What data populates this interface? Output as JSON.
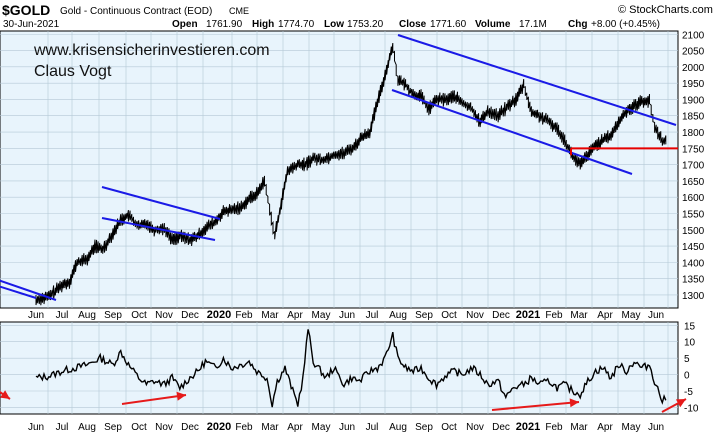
{
  "header": {
    "ticker": "$GOLD",
    "name": "Gold - Continuous Contract (EOD)",
    "exchange": "CME",
    "date": "30-Jun-2021",
    "open_label": "Open",
    "open": "1761.90",
    "high_label": "High",
    "high": "1774.70",
    "low_label": "Low",
    "low": "1753.20",
    "close_label": "Close",
    "close": "1771.60",
    "volume_label": "Volume",
    "volume": "17.1M",
    "chg_label": "Chg",
    "chg": "+8.00 (+0.45%)",
    "logo": "© StockCharts.com"
  },
  "watermark": {
    "line1": "www.krisensicherinvestieren.com",
    "line2": "Claus Vogt"
  },
  "colors": {
    "panel_bg": "#E8F4FC",
    "grid": "#B4C8D6",
    "price": "#000000",
    "channel": "#1A1AE6",
    "support": "#E60000",
    "arrow": "#E61A1A"
  },
  "chart_data": [
    {
      "type": "line",
      "title": "",
      "xlabel": "",
      "ylabel": "",
      "x_tick_labels": [
        "Jun",
        "Jul",
        "Aug",
        "Sep",
        "Oct",
        "Nov",
        "Dec",
        "2020",
        "Feb",
        "Mar",
        "Apr",
        "May",
        "Jun",
        "Jul",
        "Aug",
        "Sep",
        "Oct",
        "Nov",
        "Dec",
        "2021",
        "Feb",
        "Mar",
        "Apr",
        "May",
        "Jun"
      ],
      "y_tick_labels": [
        "1300",
        "1350",
        "1400",
        "1450",
        "1500",
        "1550",
        "1600",
        "1650",
        "1700",
        "1750",
        "1800",
        "1850",
        "1900",
        "1950",
        "2000",
        "2050",
        "2100"
      ],
      "ylim": [
        1260,
        2110
      ],
      "grid": true,
      "series": [
        {
          "values": [
            [
              0,
              1285
            ],
            [
              0.5,
              1295
            ],
            [
              1,
              1330
            ],
            [
              1.3,
              1340
            ],
            [
              1.6,
              1400
            ],
            [
              2,
              1410
            ],
            [
              2.3,
              1450
            ],
            [
              2.6,
              1440
            ],
            [
              3,
              1490
            ],
            [
              3.3,
              1530
            ],
            [
              3.6,
              1545
            ],
            [
              4,
              1510
            ],
            [
              4.3,
              1520
            ],
            [
              4.6,
              1500
            ],
            [
              5,
              1505
            ],
            [
              5.3,
              1470
            ],
            [
              5.6,
              1480
            ],
            [
              6,
              1470
            ],
            [
              6.3,
              1480
            ],
            [
              6.6,
              1505
            ],
            [
              7,
              1525
            ],
            [
              7.3,
              1555
            ],
            [
              7.6,
              1560
            ],
            [
              8,
              1570
            ],
            [
              8.3,
              1595
            ],
            [
              8.6,
              1610
            ],
            [
              8.9,
              1650
            ],
            [
              9.1,
              1565
            ],
            [
              9.3,
              1480
            ],
            [
              9.5,
              1560
            ],
            [
              9.8,
              1680
            ],
            [
              10.2,
              1700
            ],
            [
              10.5,
              1700
            ],
            [
              10.8,
              1720
            ],
            [
              11.2,
              1715
            ],
            [
              11.6,
              1730
            ],
            [
              12,
              1735
            ],
            [
              12.4,
              1755
            ],
            [
              12.7,
              1785
            ],
            [
              13,
              1800
            ],
            [
              13.3,
              1890
            ],
            [
              13.6,
              1975
            ],
            [
              13.9,
              2065
            ],
            [
              14.1,
              1960
            ],
            [
              14.4,
              1945
            ],
            [
              14.7,
              1915
            ],
            [
              15,
              1910
            ],
            [
              15.3,
              1870
            ],
            [
              15.6,
              1900
            ],
            [
              16,
              1900
            ],
            [
              16.3,
              1910
            ],
            [
              16.6,
              1890
            ],
            [
              17,
              1870
            ],
            [
              17.3,
              1830
            ],
            [
              17.6,
              1865
            ],
            [
              18,
              1850
            ],
            [
              18.4,
              1880
            ],
            [
              18.7,
              1900
            ],
            [
              19,
              1945
            ],
            [
              19.3,
              1860
            ],
            [
              19.6,
              1850
            ],
            [
              20,
              1830
            ],
            [
              20.3,
              1810
            ],
            [
              20.6,
              1775
            ],
            [
              20.9,
              1725
            ],
            [
              21.2,
              1700
            ],
            [
              21.5,
              1730
            ],
            [
              21.8,
              1760
            ],
            [
              22.1,
              1775
            ],
            [
              22.4,
              1790
            ],
            [
              22.7,
              1830
            ],
            [
              23,
              1865
            ],
            [
              23.3,
              1880
            ],
            [
              23.6,
              1895
            ],
            [
              23.9,
              1895
            ],
            [
              24.1,
              1815
            ],
            [
              24.4,
              1775
            ],
            [
              24.6,
              1770
            ]
          ]
        }
      ]
    },
    {
      "type": "line",
      "title": "",
      "xlabel": "",
      "ylabel": "",
      "x_tick_labels": [
        "Jun",
        "Jul",
        "Aug",
        "Sep",
        "Oct",
        "Nov",
        "Dec",
        "2020",
        "Feb",
        "Mar",
        "Apr",
        "May",
        "Jun",
        "Jul",
        "Aug",
        "Sep",
        "Oct",
        "Nov",
        "Dec",
        "2021",
        "Feb",
        "Mar",
        "Apr",
        "May",
        "Jun"
      ],
      "y_tick_labels": [
        "-10",
        "-5",
        "0",
        "5",
        "10",
        "15"
      ],
      "ylim": [
        -12,
        16
      ],
      "grid": true,
      "series": [
        {
          "values": [
            [
              0,
              -1
            ],
            [
              0.5,
              -0.5
            ],
            [
              1,
              1
            ],
            [
              1.5,
              2
            ],
            [
              2,
              3
            ],
            [
              2.5,
              5
            ],
            [
              3,
              3
            ],
            [
              3.3,
              7
            ],
            [
              3.6,
              3
            ],
            [
              4,
              -1
            ],
            [
              4.3,
              -3
            ],
            [
              4.6,
              -2
            ],
            [
              5,
              -3
            ],
            [
              5.3,
              -1
            ],
            [
              5.6,
              -4
            ],
            [
              6,
              -1
            ],
            [
              6.3,
              1
            ],
            [
              6.6,
              4
            ],
            [
              7,
              2
            ],
            [
              7.3,
              5
            ],
            [
              7.6,
              2
            ],
            [
              8,
              3
            ],
            [
              8.3,
              4
            ],
            [
              8.6,
              1
            ],
            [
              9,
              -1
            ],
            [
              9.2,
              -9
            ],
            [
              9.4,
              -2
            ],
            [
              9.7,
              2
            ],
            [
              10,
              -5
            ],
            [
              10.2,
              -9
            ],
            [
              10.4,
              -1
            ],
            [
              10.6,
              14
            ],
            [
              10.8,
              4
            ],
            [
              11,
              2
            ],
            [
              11.3,
              -1
            ],
            [
              11.6,
              2
            ],
            [
              12,
              -3
            ],
            [
              12.3,
              -1
            ],
            [
              12.6,
              -2
            ],
            [
              13,
              1
            ],
            [
              13.3,
              2
            ],
            [
              13.6,
              5
            ],
            [
              13.9,
              12
            ],
            [
              14.1,
              5
            ],
            [
              14.4,
              2
            ],
            [
              14.7,
              1
            ],
            [
              15,
              2
            ],
            [
              15.3,
              -1
            ],
            [
              15.6,
              -3
            ],
            [
              16,
              0
            ],
            [
              16.3,
              1
            ],
            [
              16.6,
              0
            ],
            [
              17,
              2
            ],
            [
              17.3,
              0
            ],
            [
              17.6,
              -3
            ],
            [
              18,
              -2
            ],
            [
              18.3,
              -7
            ],
            [
              18.6,
              -4
            ],
            [
              19,
              -3
            ],
            [
              19.3,
              -1
            ],
            [
              19.6,
              -3
            ],
            [
              20,
              -2
            ],
            [
              20.3,
              -4
            ],
            [
              20.6,
              -3
            ],
            [
              20.9,
              -5
            ],
            [
              21.2,
              -6
            ],
            [
              21.5,
              -2
            ],
            [
              21.8,
              1
            ],
            [
              22.1,
              2
            ],
            [
              22.4,
              -1
            ],
            [
              22.7,
              3
            ],
            [
              23,
              1
            ],
            [
              23.3,
              4
            ],
            [
              23.6,
              2
            ],
            [
              23.9,
              3
            ],
            [
              24.1,
              -2
            ],
            [
              24.4,
              -8
            ],
            [
              24.6,
              -7
            ]
          ]
        }
      ]
    }
  ]
}
